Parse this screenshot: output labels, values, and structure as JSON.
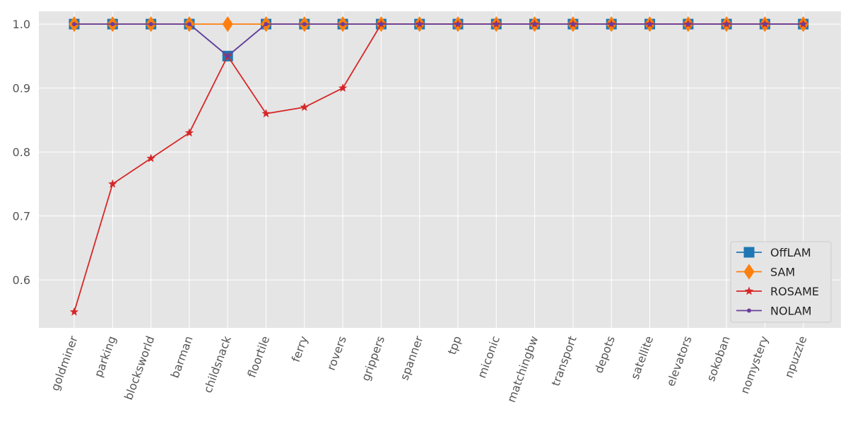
{
  "chart_data": {
    "type": "line",
    "title": "",
    "xlabel": "",
    "ylabel": "",
    "categories": [
      "goldminer",
      "parking",
      "blocksworld",
      "barman",
      "childsnack",
      "floortile",
      "ferry",
      "rovers",
      "grippers",
      "spanner",
      "tpp",
      "miconic",
      "matchingbw",
      "transport",
      "depots",
      "satellite",
      "elevators",
      "sokoban",
      "nomystery",
      "npuzzle"
    ],
    "ylim": [
      0.525,
      1.02
    ],
    "yticks": [
      0.6,
      0.7,
      0.8,
      0.9,
      1.0
    ],
    "ytick_labels": [
      "0.6",
      "0.7",
      "0.8",
      "0.9",
      "1.0"
    ],
    "grid": true,
    "legend_position": "lower-right",
    "background": "#e5e5e5",
    "series": [
      {
        "name": "OffLAM",
        "color": "#1f77b4",
        "marker": "square",
        "values": [
          1.0,
          1.0,
          1.0,
          1.0,
          0.95,
          1.0,
          1.0,
          1.0,
          1.0,
          1.0,
          1.0,
          1.0,
          1.0,
          1.0,
          1.0,
          1.0,
          1.0,
          1.0,
          1.0,
          1.0
        ]
      },
      {
        "name": "SAM",
        "color": "#ff7f0e",
        "marker": "diamond",
        "values": [
          1.0,
          1.0,
          1.0,
          1.0,
          1.0,
          1.0,
          1.0,
          1.0,
          1.0,
          1.0,
          1.0,
          1.0,
          1.0,
          1.0,
          1.0,
          1.0,
          1.0,
          1.0,
          1.0,
          1.0
        ]
      },
      {
        "name": "ROSAME",
        "color": "#d62728",
        "marker": "star",
        "values": [
          0.55,
          0.75,
          0.79,
          0.83,
          0.95,
          0.86,
          0.87,
          0.9,
          1.0,
          1.0,
          1.0,
          1.0,
          1.0,
          1.0,
          1.0,
          1.0,
          1.0,
          1.0,
          1.0,
          1.0
        ]
      },
      {
        "name": "NOLAM",
        "color": "#6a3d9a",
        "marker": "dot",
        "values": [
          1.0,
          1.0,
          1.0,
          1.0,
          0.95,
          1.0,
          1.0,
          1.0,
          1.0,
          1.0,
          1.0,
          1.0,
          1.0,
          1.0,
          1.0,
          1.0,
          1.0,
          1.0,
          1.0,
          1.0
        ]
      }
    ]
  }
}
